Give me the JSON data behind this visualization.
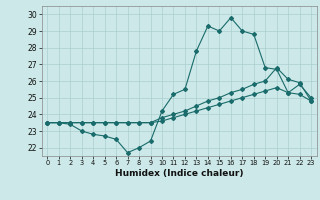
{
  "xlabel": "Humidex (Indice chaleur)",
  "background_color": "#cce8e8",
  "line_color": "#1a6b6b",
  "grid_color": "#aacfcf",
  "x_min": -0.5,
  "x_max": 23.5,
  "y_min": 21.5,
  "y_max": 30.5,
  "yticks": [
    22,
    23,
    24,
    25,
    26,
    27,
    28,
    29,
    30
  ],
  "xticks": [
    0,
    1,
    2,
    3,
    4,
    5,
    6,
    7,
    8,
    9,
    10,
    11,
    12,
    13,
    14,
    15,
    16,
    17,
    18,
    19,
    20,
    21,
    22,
    23
  ],
  "series": [
    {
      "x": [
        0,
        1,
        2,
        3,
        4,
        5,
        6,
        7,
        8,
        9,
        10,
        11,
        12,
        13,
        14,
        15,
        16,
        17,
        18,
        19,
        20,
        21,
        22,
        23
      ],
      "y": [
        23.5,
        23.5,
        23.4,
        23.0,
        22.8,
        22.7,
        22.5,
        21.7,
        22.0,
        22.4,
        24.2,
        25.2,
        25.5,
        27.8,
        29.3,
        29.0,
        29.8,
        29.0,
        28.8,
        26.8,
        26.7,
        25.3,
        25.8,
        25.0
      ]
    },
    {
      "x": [
        0,
        1,
        2,
        3,
        4,
        5,
        6,
        7,
        8,
        9,
        10,
        11,
        12,
        13,
        14,
        15,
        16,
        17,
        18,
        19,
        20,
        21,
        22,
        23
      ],
      "y": [
        23.5,
        23.5,
        23.5,
        23.5,
        23.5,
        23.5,
        23.5,
        23.5,
        23.5,
        23.5,
        23.8,
        24.0,
        24.2,
        24.5,
        24.8,
        25.0,
        25.3,
        25.5,
        25.8,
        26.0,
        26.8,
        26.1,
        25.9,
        24.8
      ]
    },
    {
      "x": [
        0,
        1,
        2,
        3,
        4,
        5,
        6,
        7,
        8,
        9,
        10,
        11,
        12,
        13,
        14,
        15,
        16,
        17,
        18,
        19,
        20,
        21,
        22,
        23
      ],
      "y": [
        23.5,
        23.5,
        23.5,
        23.5,
        23.5,
        23.5,
        23.5,
        23.5,
        23.5,
        23.5,
        23.6,
        23.8,
        24.0,
        24.2,
        24.4,
        24.6,
        24.8,
        25.0,
        25.2,
        25.4,
        25.6,
        25.3,
        25.2,
        24.8
      ]
    }
  ]
}
